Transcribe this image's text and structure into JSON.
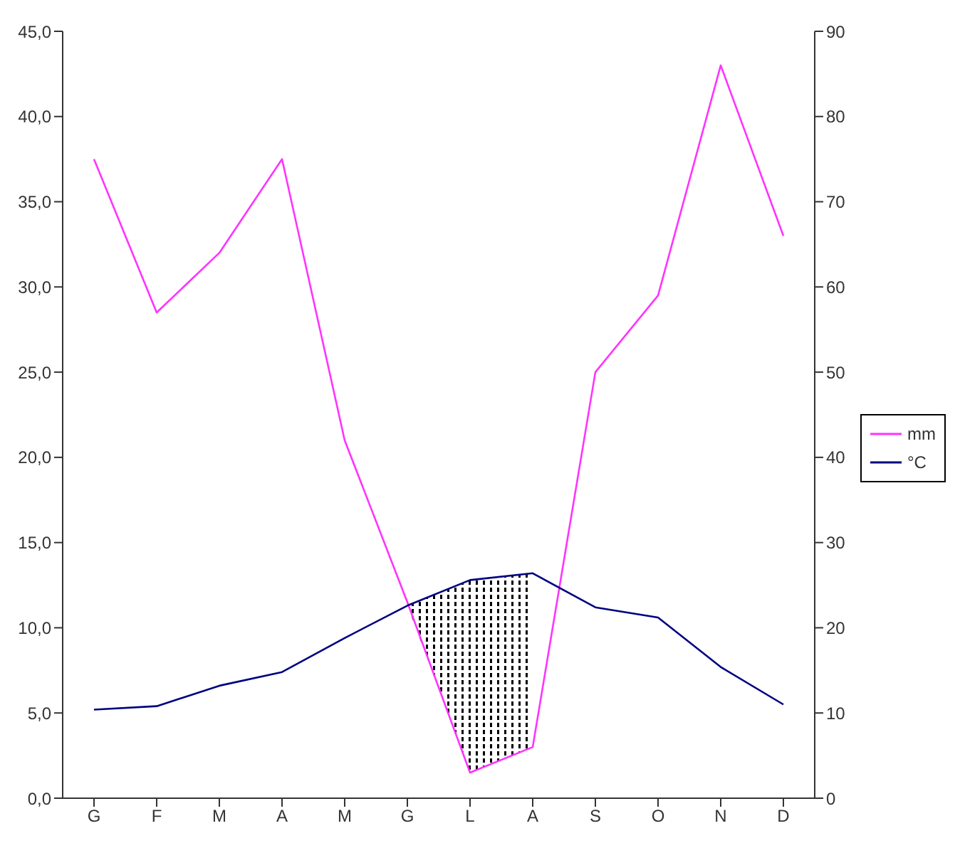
{
  "chart_data": {
    "type": "line",
    "categories": [
      "G",
      "F",
      "M",
      "A",
      "M",
      "G",
      "L",
      "A",
      "S",
      "O",
      "N",
      "D"
    ],
    "series": [
      {
        "name": "mm",
        "color": "#ff33ff",
        "axis": "y2",
        "values": [
          75,
          57,
          64,
          75,
          42,
          23,
          3,
          6,
          50,
          59,
          86,
          66
        ]
      },
      {
        "name": "°C",
        "color": "#000080",
        "values": [
          5.2,
          5.4,
          6.6,
          7.4,
          9.4,
          11.3,
          12.8,
          13.2,
          11.2,
          10.6,
          7.7,
          5.5
        ],
        "lower": [
          null,
          null,
          null,
          null,
          null,
          11.3,
          1.5,
          3.0,
          null,
          null,
          null,
          null
        ],
        "upper": [
          null,
          null,
          null,
          null,
          null,
          11.3,
          12.8,
          13.2,
          null,
          null,
          null,
          null
        ]
      }
    ],
    "ylim": [
      0,
      45
    ],
    "yticks": [
      {
        "value": 0,
        "label": "0,0"
      },
      {
        "value": 5,
        "label": "5,0"
      },
      {
        "value": 10,
        "label": "10,0"
      },
      {
        "value": 15,
        "label": "15,0"
      },
      {
        "value": 20,
        "label": "20,0"
      },
      {
        "value": 25,
        "label": "25,0"
      },
      {
        "value": 30,
        "label": "30,0"
      },
      {
        "value": 35,
        "label": "35,0"
      },
      {
        "value": 40,
        "label": "40,0"
      },
      {
        "value": 45,
        "label": "45,0"
      }
    ],
    "y2lim": [
      0,
      90
    ],
    "y2ticks": [
      0,
      10,
      20,
      30,
      40,
      50,
      60,
      70,
      80,
      90
    ],
    "grid": false,
    "legend": "right",
    "marker": "none"
  }
}
